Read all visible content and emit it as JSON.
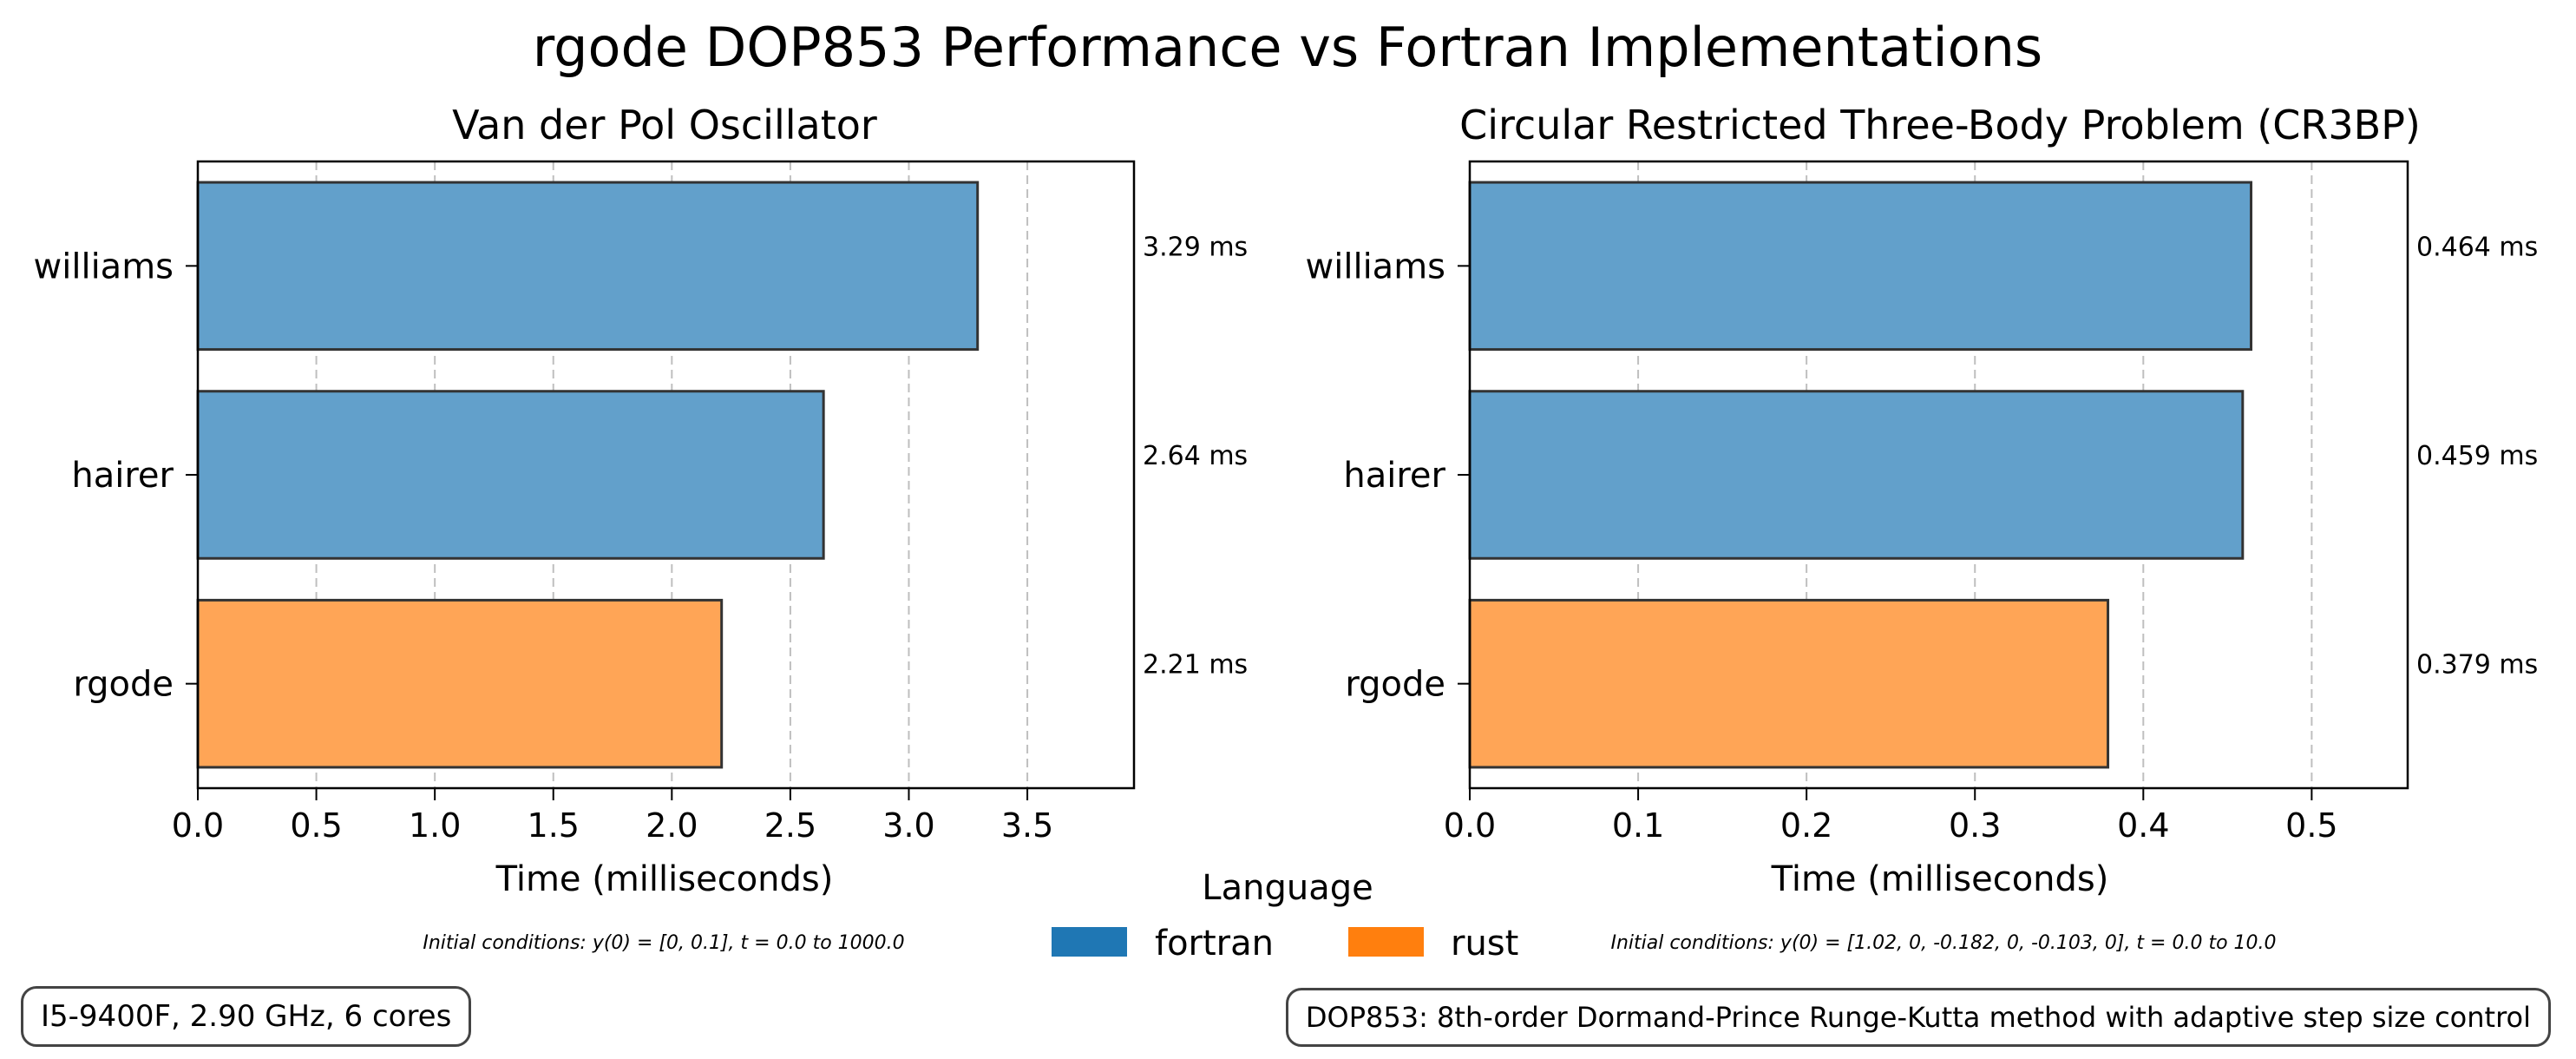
{
  "figure": {
    "title": "rgode DOP853 Performance vs Fortran Implementations",
    "legend_title": "Language",
    "legend": [
      {
        "label": "fortran",
        "color": "#1f77b4"
      },
      {
        "label": "rust",
        "color": "#ff7f0e"
      }
    ],
    "hardware_note": "I5-9400F, 2.90 GHz, 6 cores",
    "method_note": "DOP853: 8th-order Dormand-Prince Runge-Kutta method with adaptive step size control"
  },
  "chart_data": [
    {
      "type": "bar",
      "orientation": "horizontal",
      "title": "Van der Pol Oscillator",
      "xlabel": "Time (milliseconds)",
      "ylabel": "",
      "categories": [
        "williams",
        "hairer",
        "rgode"
      ],
      "values": [
        3.29,
        2.64,
        2.21
      ],
      "value_labels": [
        "3.29 ms",
        "2.64 ms",
        "2.21 ms"
      ],
      "languages": [
        "fortran",
        "fortran",
        "rust"
      ],
      "xlim": [
        0,
        3.95
      ],
      "xticks": [
        0.0,
        0.5,
        1.0,
        1.5,
        2.0,
        2.5,
        3.0,
        3.5
      ],
      "xtick_labels": [
        "0.0",
        "0.5",
        "1.0",
        "1.5",
        "2.0",
        "2.5",
        "3.0",
        "3.5"
      ],
      "grid": "x-dashed",
      "note": "Initial conditions: y(0) = [0, 0.1], t = 0.0 to 1000.0"
    },
    {
      "type": "bar",
      "orientation": "horizontal",
      "title": "Circular Restricted Three-Body Problem (CR3BP)",
      "xlabel": "Time (milliseconds)",
      "ylabel": "",
      "categories": [
        "williams",
        "hairer",
        "rgode"
      ],
      "values": [
        0.464,
        0.459,
        0.379
      ],
      "value_labels": [
        "0.464 ms",
        "0.459 ms",
        "0.379 ms"
      ],
      "languages": [
        "fortran",
        "fortran",
        "rust"
      ],
      "xlim": [
        0,
        0.557
      ],
      "xticks": [
        0.0,
        0.1,
        0.2,
        0.3,
        0.4,
        0.5
      ],
      "xtick_labels": [
        "0.0",
        "0.1",
        "0.2",
        "0.3",
        "0.4",
        "0.5"
      ],
      "grid": "x-dashed",
      "note": "Initial conditions: y(0) = [1.02, 0, -0.182, 0, -0.103, 0], t = 0.0 to 10.0"
    }
  ],
  "colors": {
    "fortran_bar": "#62a0cb",
    "rust_bar": "#ffa556",
    "bar_edge": "#333333",
    "grid": "#bfbfbf"
  }
}
